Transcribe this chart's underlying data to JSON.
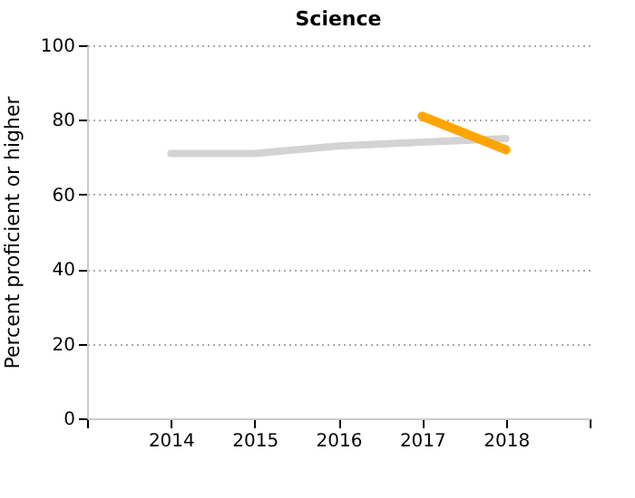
{
  "chart_data": {
    "type": "line",
    "title": "Science",
    "ylabel": "Percent proficient or higher",
    "x": [
      2014,
      2015,
      2016,
      2017,
      2018
    ],
    "series": [
      {
        "color": "#d3d3d3",
        "values": [
          71,
          71,
          73,
          74,
          75
        ]
      },
      {
        "color": "#ffa500",
        "x": [
          2017,
          2018
        ],
        "values": [
          81,
          72
        ]
      }
    ],
    "xlim": [
      2013,
      2019
    ],
    "xticks": [
      {
        "value": 2013,
        "label": null
      },
      2014,
      2015,
      2016,
      2017,
      2018,
      {
        "value": 2019,
        "label": null
      }
    ],
    "ylim": [
      0,
      100
    ],
    "yticks": [
      0,
      20,
      40,
      60,
      80,
      100
    ],
    "grid": "y",
    "marker": "none",
    "line_style": "solid"
  }
}
